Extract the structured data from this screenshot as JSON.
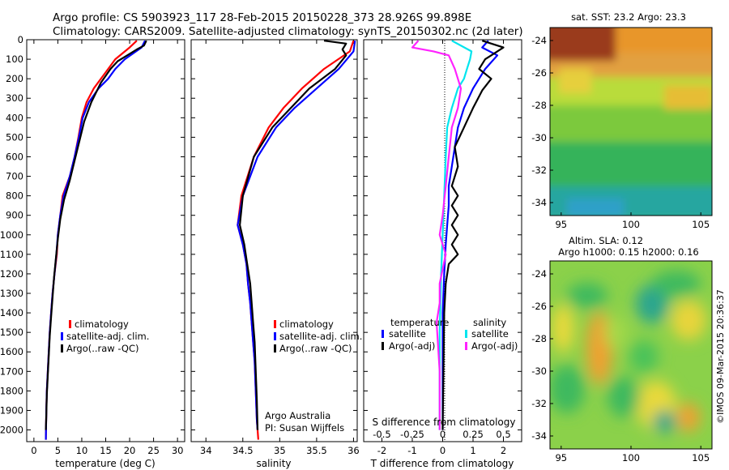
{
  "header": {
    "line1": "Argo profile: CS 5903923_117 28-Feb-2015 20150228_373 28.926S 99.898E",
    "line2": "Climatology: CARS2009. Satellite-adjusted climatology: synTS_20150302.nc (2d later)"
  },
  "colors": {
    "climatology": "#ff0000",
    "satellite": "#0000ff",
    "argo": "#000000",
    "sal_satellite": "#00e5ee",
    "sal_argo": "#ff22ff"
  },
  "chart_data": [
    {
      "type": "line",
      "id": "temperature",
      "xlabel": "temperature (deg C)",
      "ylabel": "",
      "xlim": [
        -1.5,
        31.5
      ],
      "ylim": [
        2060,
        0
      ],
      "xticks": [
        0,
        5,
        10,
        15,
        20,
        25,
        30
      ],
      "yticks": [
        0,
        100,
        200,
        300,
        400,
        500,
        600,
        700,
        800,
        900,
        1000,
        1100,
        1200,
        1300,
        1400,
        1500,
        1600,
        1700,
        1800,
        1900,
        2000
      ],
      "legend": {
        "placement": "bottom-center",
        "entries": [
          "climatology",
          "satellite-adj. clim.",
          "Argo(..raw -QC)"
        ]
      },
      "series": [
        {
          "name": "climatology",
          "x": [
            21.5,
            20.0,
            17.0,
            15.5,
            14.0,
            12.5,
            11.0,
            10.0,
            9.3,
            8.5,
            7.5,
            6.0,
            5.5,
            5.0,
            4.8,
            4.3,
            3.9,
            3.6,
            3.3,
            3.1,
            2.9,
            2.7,
            2.6,
            2.5
          ],
          "y": [
            5,
            40,
            100,
            150,
            200,
            250,
            320,
            400,
            500,
            600,
            700,
            800,
            900,
            1000,
            1100,
            1200,
            1300,
            1400,
            1500,
            1600,
            1700,
            1800,
            1900,
            2050
          ]
        },
        {
          "name": "satellite-adj. clim.",
          "x": [
            23.2,
            22.5,
            19.0,
            17.0,
            15.5,
            13.5,
            11.5,
            10.2,
            9.4,
            8.5,
            7.5,
            6.2,
            5.5,
            5.0,
            4.7,
            4.3,
            3.9,
            3.6,
            3.3,
            3.1,
            2.9,
            2.7,
            2.6,
            2.5
          ],
          "y": [
            5,
            40,
            100,
            150,
            200,
            250,
            320,
            400,
            500,
            600,
            700,
            800,
            900,
            1000,
            1100,
            1200,
            1300,
            1400,
            1500,
            1600,
            1700,
            1800,
            1900,
            2050
          ]
        },
        {
          "name": "Argo(..raw -QC)",
          "x": [
            23.5,
            23.0,
            21.5,
            19.5,
            17.5,
            16.0,
            14.0,
            12.0,
            10.5,
            9.5,
            8.5,
            7.5,
            6.3,
            5.5,
            5.0,
            4.6,
            4.2,
            3.9,
            3.6,
            3.3,
            3.1,
            2.9,
            2.7,
            2.6,
            2.5
          ],
          "y": [
            5,
            30,
            50,
            80,
            110,
            150,
            220,
            320,
            420,
            520,
            620,
            720,
            820,
            920,
            1020,
            1120,
            1220,
            1320,
            1420,
            1520,
            1620,
            1720,
            1820,
            1920,
            2000
          ]
        }
      ]
    },
    {
      "type": "line",
      "id": "salinity",
      "xlabel": "salinity",
      "ylabel": "",
      "xlim": [
        33.8,
        36.05
      ],
      "ylim": [
        2060,
        0
      ],
      "xticks": [
        34,
        34.5,
        35,
        35.5,
        36
      ],
      "legend": {
        "placement": "bottom-center",
        "entries": [
          "climatology",
          "satellite-adj. clim.",
          "Argo(..raw -QC)"
        ]
      },
      "annotation": {
        "line1": "Argo Australia",
        "line2": "PI: Susan Wijffels"
      },
      "series": [
        {
          "name": "climatology",
          "x": [
            36.0,
            35.95,
            35.6,
            35.3,
            35.05,
            34.85,
            34.65,
            34.48,
            34.43,
            34.5,
            34.55,
            34.57,
            34.6,
            34.62,
            34.64,
            34.66,
            34.67,
            34.68,
            34.69,
            34.7,
            34.71
          ],
          "y": [
            5,
            60,
            150,
            250,
            350,
            450,
            600,
            800,
            950,
            1050,
            1150,
            1250,
            1350,
            1450,
            1550,
            1650,
            1750,
            1850,
            1950,
            2000,
            2050
          ]
        },
        {
          "name": "satellite-adj. clim.",
          "x": [
            36.02,
            36.0,
            35.8,
            35.5,
            35.2,
            34.95,
            34.7,
            34.5,
            34.43,
            34.5,
            34.55,
            34.57,
            34.6,
            34.62,
            34.64,
            34.66,
            34.67,
            34.68,
            34.69,
            34.7
          ],
          "y": [
            5,
            60,
            150,
            250,
            350,
            450,
            600,
            800,
            950,
            1050,
            1150,
            1250,
            1350,
            1450,
            1550,
            1650,
            1750,
            1850,
            1950,
            2000
          ]
        },
        {
          "name": "Argo(..raw -QC)",
          "x": [
            35.6,
            35.9,
            35.85,
            35.9,
            35.75,
            35.4,
            35.15,
            34.9,
            34.65,
            34.5,
            34.46,
            34.52,
            34.56,
            34.6,
            34.62,
            34.64,
            34.66,
            34.67,
            34.68,
            34.69,
            34.7
          ],
          "y": [
            5,
            20,
            50,
            80,
            150,
            250,
            350,
            450,
            600,
            800,
            950,
            1050,
            1150,
            1250,
            1350,
            1450,
            1550,
            1650,
            1750,
            1850,
            2000
          ]
        }
      ]
    },
    {
      "type": "line",
      "id": "differences",
      "xlabel": "T difference from climatology",
      "xlabel2": "S difference from climatology",
      "xlim": [
        -2.6,
        2.6
      ],
      "ylim": [
        2060,
        0
      ],
      "xticks": [
        -2,
        -1,
        0,
        1,
        2
      ],
      "xticks2_labels": [
        "-0.5",
        "-0.25",
        "0",
        "0.25",
        "0.5"
      ],
      "legend": {
        "placement": "bottom",
        "headers": [
          "temperature",
          "salinity"
        ],
        "entries": [
          "satellite",
          "Argo(-adj)",
          "satellite",
          "Argo(-adj)"
        ]
      },
      "series": [
        {
          "name": "T satellite",
          "x": [
            1.5,
            1.3,
            1.8,
            1.4,
            1.0,
            0.7,
            0.5,
            0.4,
            0.3,
            0.2,
            0.2,
            0.15,
            0.1,
            0.05,
            0,
            0,
            0,
            0,
            0
          ],
          "y": [
            5,
            40,
            80,
            150,
            250,
            350,
            450,
            550,
            650,
            750,
            850,
            950,
            1050,
            1200,
            1400,
            1600,
            1800,
            1950,
            2000
          ]
        },
        {
          "name": "T Argo(-adj)",
          "x": [
            1.3,
            2.0,
            1.6,
            1.4,
            1.2,
            1.6,
            1.3,
            1.0,
            0.7,
            0.4,
            0.5,
            0.3,
            0.5,
            0.3,
            0.5,
            0.3,
            0.5,
            0.3,
            0.5,
            0.2,
            0.1,
            0.05,
            0
          ],
          "y": [
            5,
            40,
            80,
            100,
            150,
            200,
            260,
            350,
            450,
            550,
            650,
            750,
            800,
            850,
            900,
            950,
            1000,
            1050,
            1100,
            1150,
            1250,
            1400,
            2000
          ]
        },
        {
          "name": "S satellite",
          "x": [
            0.3,
            0.95,
            0.9,
            0.8,
            0.7,
            0.5,
            0.3,
            0.15,
            0.1,
            0.05,
            0,
            -0.05,
            -0.1,
            -0.1,
            -0.1
          ],
          "y": [
            5,
            60,
            100,
            150,
            200,
            250,
            350,
            450,
            600,
            800,
            1000,
            1200,
            1500,
            1800,
            2000
          ]
        },
        {
          "name": "S Argo(-adj)",
          "x": [
            -0.8,
            -1.0,
            -0.3,
            0.2,
            0.4,
            0.6,
            0.5,
            0.3,
            0.2,
            0.1,
            0,
            -0.1,
            0.1,
            -0.1,
            -0.1,
            -0.2,
            -0.1,
            -0.1
          ],
          "y": [
            5,
            40,
            60,
            80,
            150,
            250,
            350,
            450,
            600,
            750,
            900,
            1000,
            1100,
            1250,
            1350,
            1450,
            1700,
            2000
          ]
        }
      ]
    },
    {
      "type": "heatmap",
      "id": "sst_map",
      "title": "sat. SST: 23.2  Argo: 23.3",
      "xlim": [
        94.2,
        105.8
      ],
      "ylim": [
        -34.8,
        -23.2
      ],
      "xticks": [
        95,
        100,
        105
      ],
      "yticks": [
        -24,
        -26,
        -28,
        -30,
        -32,
        -34
      ]
    },
    {
      "type": "heatmap",
      "id": "sla_map",
      "title": "Altim. SLA: 0.12",
      "subtitle": "Argo h1000: 0.15 h2000: 0.16",
      "xlim": [
        94.2,
        105.8
      ],
      "ylim": [
        -34.8,
        -23.2
      ],
      "xticks": [
        95,
        100,
        105
      ],
      "yticks": [
        -24,
        -26,
        -28,
        -30,
        -32,
        -34
      ]
    }
  ],
  "credit": "©IMOS 09-Mar-2015 20:36:37"
}
